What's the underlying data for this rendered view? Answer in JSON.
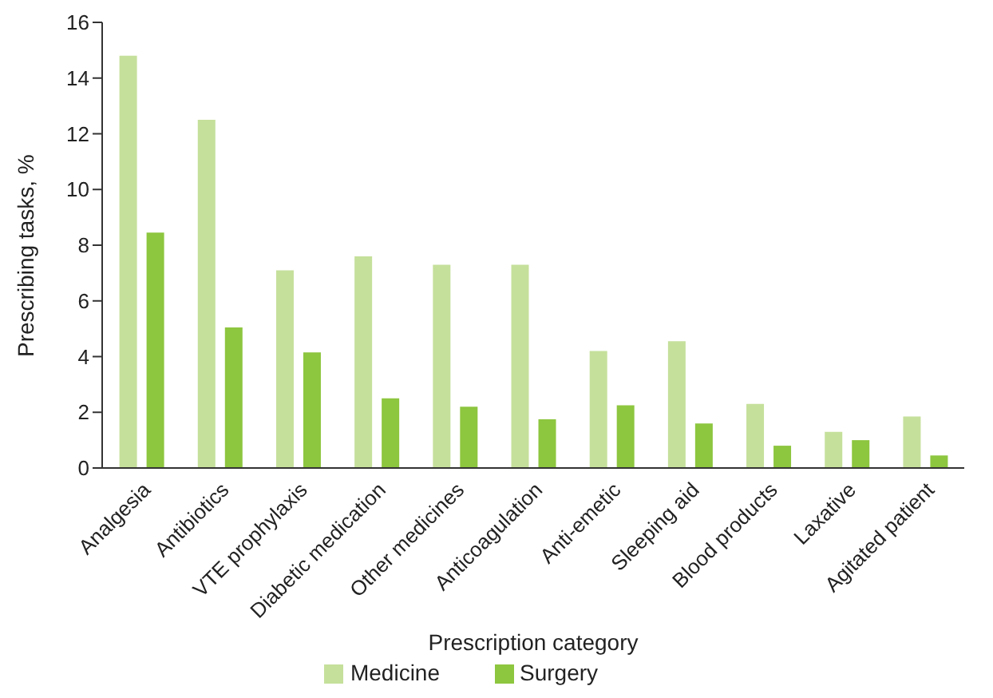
{
  "chart_data": {
    "type": "bar",
    "xlabel": "Prescription category",
    "ylabel": "Prescribing tasks, %",
    "categories": [
      "Analgesia",
      "Antibiotics",
      "VTE prophylaxis",
      "Diabetic medication",
      "Other medicines",
      "Anticoagulation",
      "Anti-emetic",
      "Sleeping aid",
      "Blood products",
      "Laxative",
      "Agitated patient"
    ],
    "series": [
      {
        "name": "Medicine",
        "color": "#c5e09b",
        "values": [
          14.8,
          12.5,
          7.1,
          7.6,
          7.3,
          7.3,
          4.2,
          4.55,
          2.3,
          1.3,
          1.85
        ]
      },
      {
        "name": "Surgery",
        "color": "#8dc63f",
        "values": [
          8.45,
          5.05,
          4.15,
          2.5,
          2.2,
          1.75,
          2.25,
          1.6,
          0.8,
          1.0,
          0.45
        ]
      }
    ],
    "ylim": [
      0,
      16
    ],
    "yticks": [
      0,
      2,
      4,
      6,
      8,
      10,
      12,
      14,
      16
    ],
    "grid": false,
    "legend": "bottom"
  }
}
